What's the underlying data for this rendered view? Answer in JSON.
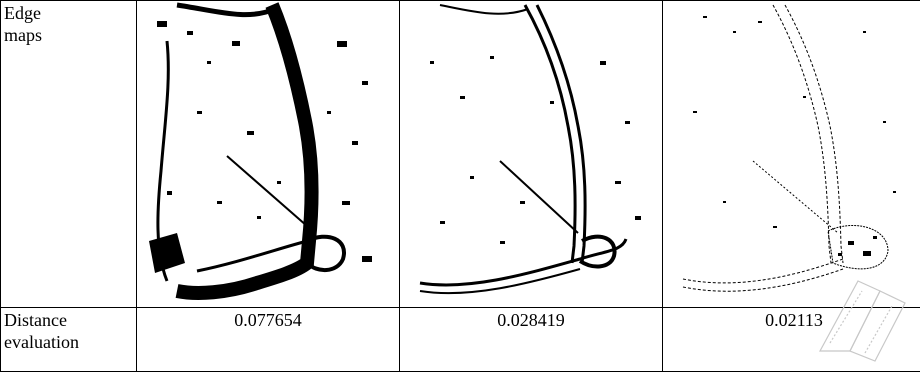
{
  "table": {
    "row_labels": {
      "edge_maps": "Edge\nmaps",
      "distance_evaluation": "Distance\nevaluation"
    },
    "distances": [
      "0.077654",
      "0.028419",
      "0.02113"
    ]
  },
  "images": [
    {
      "name": "edge-map-1",
      "style": "thick"
    },
    {
      "name": "edge-map-2",
      "style": "double"
    },
    {
      "name": "edge-map-3",
      "style": "fine"
    }
  ]
}
